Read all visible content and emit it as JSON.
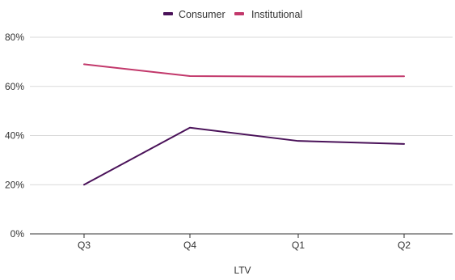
{
  "chart_data": {
    "type": "line",
    "title": "",
    "xlabel": "LTV",
    "ylabel": "",
    "categories": [
      "Q3",
      "Q4",
      "Q1",
      "Q2"
    ],
    "y_ticks": [
      "0%",
      "20%",
      "40%",
      "60%",
      "80%"
    ],
    "ylim": [
      0,
      80
    ],
    "y_unit": "%",
    "grid": "horizontal",
    "legend_position": "top-center",
    "series": [
      {
        "name": "Consumer",
        "color": "#4a1259",
        "values": [
          20,
          43.2,
          37.8,
          36.6
        ]
      },
      {
        "name": "Institutional",
        "color": "#c2386b",
        "values": [
          69,
          64.2,
          64,
          64.1
        ]
      }
    ]
  }
}
